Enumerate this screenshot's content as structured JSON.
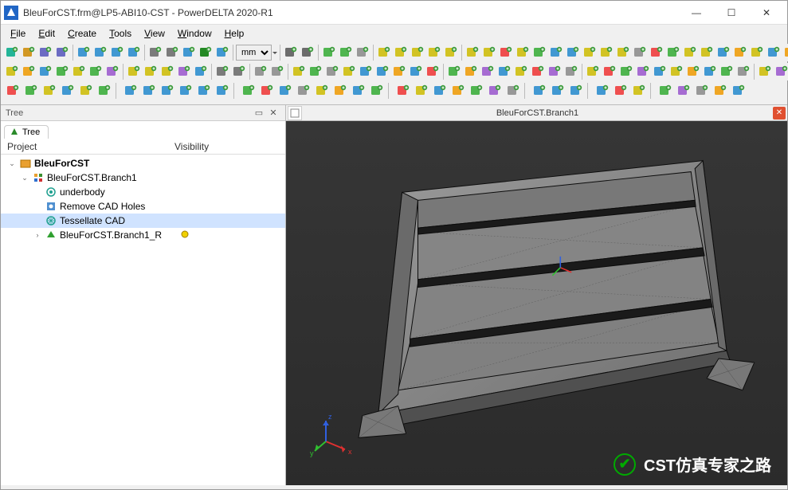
{
  "window": {
    "title": "BleuForCST.frm@LP5-ABI10-CST - PowerDELTA 2020-R1",
    "min": "—",
    "max": "☐",
    "close": "✕"
  },
  "menu": {
    "file": "File",
    "edit": "Edit",
    "create": "Create",
    "tools": "Tools",
    "view": "View",
    "window": "Window",
    "help": "Help"
  },
  "unit_select": {
    "value": "mm"
  },
  "tree_panel": {
    "title": "Tree",
    "tab_label": "Tree",
    "col_project": "Project",
    "col_visibility": "Visibility"
  },
  "tree": {
    "root": "BleuForCST",
    "branch": "BleuForCST.Branch1",
    "underbody": "underbody",
    "remove_holes": "Remove CAD Holes",
    "tessellate": "Tessellate CAD",
    "branch_r": "BleuForCST.Branch1_R"
  },
  "viewport": {
    "title": "BleuForCST.Branch1"
  },
  "watermark": {
    "text": "CST仿真专家之路"
  },
  "icons": {
    "row1": [
      {
        "c": "#0a8",
        "bg": "#fff",
        "sh": "doc"
      },
      {
        "c": "#c80",
        "bg": "#fff",
        "sh": "open"
      },
      {
        "c": "#55b",
        "bg": "#fff",
        "sh": "save"
      },
      {
        "c": "#55b",
        "bg": "#fff",
        "sh": "saveas"
      },
      {
        "sep": 1
      },
      {
        "c": "#28c",
        "sh": "axisX"
      },
      {
        "c": "#28c",
        "sh": "axisY"
      },
      {
        "c": "#28c",
        "sh": "axisZ"
      },
      {
        "c": "#28c",
        "sh": "axis3"
      },
      {
        "sep": 1
      },
      {
        "c": "#666",
        "sh": "zoom"
      },
      {
        "c": "#666",
        "sh": "pan"
      },
      {
        "c": "#28c",
        "sh": "rot"
      },
      {
        "c": "#070",
        "sh": "curs"
      },
      {
        "c": "#28c",
        "sh": "fit"
      },
      {
        "sep": 1
      },
      {
        "unit": 1
      },
      {
        "sep": 1
      },
      {
        "c": "#555",
        "sh": "grid"
      },
      {
        "c": "#555",
        "sh": "gridv"
      },
      {
        "sep": 1
      },
      {
        "c": "#3a3",
        "sh": "plane"
      },
      {
        "c": "#3a3",
        "sh": "planev"
      },
      {
        "c": "#888",
        "sh": "eye"
      },
      {
        "sep": 1
      },
      {
        "c": "#cb0",
        "sh": "box"
      },
      {
        "c": "#cb0",
        "sh": "box2"
      },
      {
        "c": "#cb0",
        "sh": "box3"
      },
      {
        "c": "#cb0",
        "sh": "box4"
      },
      {
        "c": "#cb0",
        "sh": "box5"
      },
      {
        "sep": 1
      },
      {
        "c": "#cb0",
        "sh": "sel1"
      },
      {
        "c": "#cb0",
        "sh": "sel2"
      },
      {
        "c": "#e33",
        "sh": "selx"
      },
      {
        "c": "#cb0",
        "sh": "sel3"
      },
      {
        "c": "#3a3",
        "sh": "selp"
      },
      {
        "c": "#28c",
        "sh": "selc"
      },
      {
        "c": "#28c",
        "sh": "seld"
      },
      {
        "c": "#cb0",
        "sh": "hex"
      },
      {
        "c": "#cb0",
        "sh": "tri"
      },
      {
        "c": "#cb0",
        "sh": "mtri"
      },
      {
        "c": "#888",
        "sh": "unk"
      },
      {
        "c": "#e33",
        "sh": "x1"
      },
      {
        "c": "#3a3",
        "sh": "g1"
      },
      {
        "c": "#cb0",
        "sh": "y1"
      },
      {
        "c": "#cb0",
        "sh": "y2"
      },
      {
        "c": "#28c",
        "sh": "b1"
      },
      {
        "c": "#e90",
        "sh": "o1"
      },
      {
        "c": "#cb0",
        "sh": "y3"
      },
      {
        "c": "#28c",
        "sh": "b2"
      },
      {
        "c": "#e90",
        "sh": "o2"
      },
      {
        "c": "#888",
        "sh": "g2"
      },
      {
        "c": "#e90",
        "sh": "lock"
      },
      {
        "c": "#cb0",
        "sh": "y4"
      },
      {
        "c": "#28c",
        "sh": "b3"
      },
      {
        "c": "#888",
        "sh": "sphere"
      },
      {
        "c": "#888",
        "sh": "cube2"
      }
    ],
    "row2": [
      {
        "c": "#cb0",
        "sh": "r1"
      },
      {
        "c": "#e90",
        "sh": "r2"
      },
      {
        "c": "#28c",
        "sh": "r3"
      },
      {
        "c": "#3a3",
        "sh": "r4"
      },
      {
        "c": "#cb0",
        "sh": "r5"
      },
      {
        "c": "#3a3",
        "sh": "r6"
      },
      {
        "c": "#95c",
        "sh": "r7"
      },
      {
        "sep": 1
      },
      {
        "c": "#cb0",
        "sh": "s1"
      },
      {
        "c": "#cb0",
        "sh": "s2"
      },
      {
        "c": "#cb0",
        "sh": "s3"
      },
      {
        "c": "#95c",
        "sh": "s4"
      },
      {
        "c": "#28c",
        "sh": "s5"
      },
      {
        "sep": 1
      },
      {
        "c": "#666",
        "sh": "p1"
      },
      {
        "c": "#666",
        "sh": "p2"
      },
      {
        "sep": 1
      },
      {
        "c": "#888",
        "sh": "e1"
      },
      {
        "c": "#888",
        "sh": "e2"
      },
      {
        "sep": 1
      },
      {
        "c": "#cb0",
        "sh": "m1"
      },
      {
        "c": "#3a3",
        "sh": "m2"
      },
      {
        "c": "#888",
        "sh": "m3"
      },
      {
        "c": "#cb0",
        "sh": "m4"
      },
      {
        "c": "#28c",
        "sh": "m5"
      },
      {
        "c": "#28c",
        "sh": "m6"
      },
      {
        "c": "#e90",
        "sh": "m7"
      },
      {
        "c": "#28c",
        "sh": "m8"
      },
      {
        "c": "#e33",
        "sh": "m9"
      },
      {
        "sep": 1
      },
      {
        "c": "#3a3",
        "sh": "n1"
      },
      {
        "c": "#e90",
        "sh": "n2"
      },
      {
        "c": "#95c",
        "sh": "n3"
      },
      {
        "c": "#28c",
        "sh": "n4"
      },
      {
        "c": "#cb0",
        "sh": "n5"
      },
      {
        "c": "#e33",
        "sh": "n6"
      },
      {
        "c": "#95c",
        "sh": "n7"
      },
      {
        "c": "#888",
        "sh": "n8"
      },
      {
        "sep": 1
      },
      {
        "c": "#cb0",
        "sh": "o1"
      },
      {
        "c": "#e33",
        "sh": "o2"
      },
      {
        "c": "#3a3",
        "sh": "o3"
      },
      {
        "c": "#95c",
        "sh": "o4"
      },
      {
        "c": "#28c",
        "sh": "o5"
      },
      {
        "c": "#cb0",
        "sh": "o6"
      },
      {
        "c": "#e90",
        "sh": "o7"
      },
      {
        "c": "#28c",
        "sh": "o8"
      },
      {
        "c": "#3a3",
        "sh": "o9"
      },
      {
        "c": "#888",
        "sh": "oa"
      },
      {
        "sep": 1
      },
      {
        "c": "#cb0",
        "sh": "q1"
      },
      {
        "c": "#95c",
        "sh": "q2"
      },
      {
        "c": "#888",
        "sh": "q3"
      }
    ],
    "row3": [
      {
        "c": "#e33",
        "sh": "t1"
      },
      {
        "c": "#3a3",
        "sh": "t2"
      },
      {
        "c": "#cb0",
        "sh": "t3"
      },
      {
        "c": "#28c",
        "sh": "t4"
      },
      {
        "c": "#cb0",
        "sh": "t5"
      },
      {
        "c": "#3a3",
        "sh": "t6"
      },
      {
        "sep": 1
      },
      {
        "c": "#28c",
        "sh": "u1"
      },
      {
        "c": "#28c",
        "sh": "u2"
      },
      {
        "c": "#28c",
        "sh": "u3"
      },
      {
        "c": "#28c",
        "sh": "u4"
      },
      {
        "c": "#28c",
        "sh": "u5"
      },
      {
        "c": "#28c",
        "sh": "u6"
      },
      {
        "sep": 1
      },
      {
        "c": "#3a3",
        "sh": "v1"
      },
      {
        "c": "#e33",
        "sh": "v2"
      },
      {
        "c": "#28c",
        "sh": "v3"
      },
      {
        "c": "#888",
        "sh": "v4"
      },
      {
        "c": "#cb0",
        "sh": "v5"
      },
      {
        "c": "#e90",
        "sh": "v6"
      },
      {
        "c": "#28c",
        "sh": "v7"
      },
      {
        "c": "#3a3",
        "sh": "v8"
      },
      {
        "sep": 1
      },
      {
        "c": "#e33",
        "sh": "w1"
      },
      {
        "c": "#cb0",
        "sh": "w2"
      },
      {
        "c": "#28c",
        "sh": "w3"
      },
      {
        "c": "#e90",
        "sh": "w4"
      },
      {
        "c": "#3a3",
        "sh": "w5"
      },
      {
        "c": "#95c",
        "sh": "w6"
      },
      {
        "c": "#888",
        "sh": "w7"
      },
      {
        "sep": 1
      },
      {
        "c": "#28c",
        "sh": "x1"
      },
      {
        "c": "#28c",
        "sh": "x2"
      },
      {
        "c": "#28c",
        "sh": "x3"
      },
      {
        "sep": 1
      },
      {
        "c": "#28c",
        "sh": "y1"
      },
      {
        "c": "#e33",
        "sh": "y2"
      },
      {
        "c": "#cb0",
        "sh": "y3"
      },
      {
        "sep": 1
      },
      {
        "c": "#3a3",
        "sh": "z1"
      },
      {
        "c": "#95c",
        "sh": "z2"
      },
      {
        "c": "#888",
        "sh": "z3"
      },
      {
        "c": "#e90",
        "sh": "z4"
      },
      {
        "c": "#28c",
        "sh": "z5"
      }
    ]
  },
  "model": {
    "bg": "#303030",
    "face": "#8a8a8a",
    "edge": "#1a1a1a",
    "dark": "#2a2a2a"
  }
}
